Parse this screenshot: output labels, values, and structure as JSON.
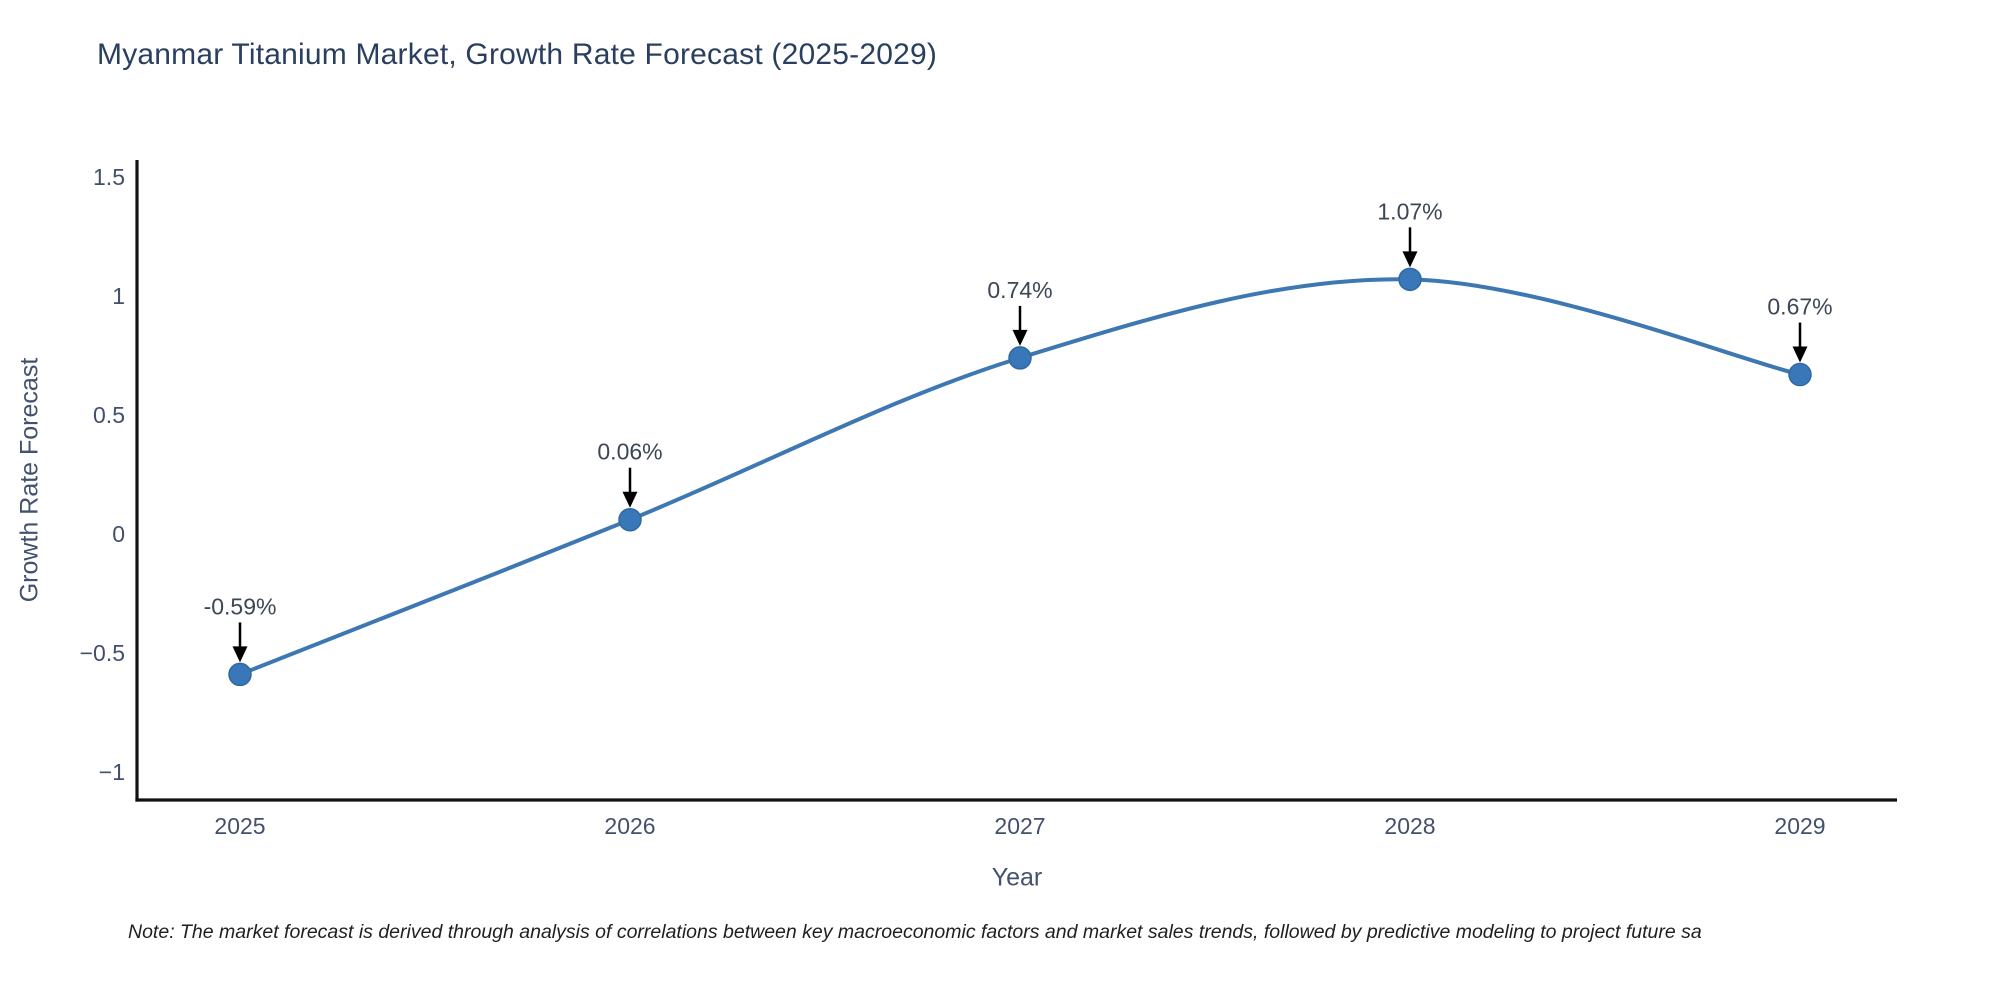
{
  "chart_data": {
    "type": "line",
    "title": "Myanmar Titanium Market, Growth Rate Forecast (2025-2029)",
    "xlabel": "Year",
    "ylabel": "Growth Rate Forecast",
    "x": [
      2025,
      2026,
      2027,
      2028,
      2029
    ],
    "xtick_labels": [
      "2025",
      "2026",
      "2027",
      "2028",
      "2029"
    ],
    "series": [
      {
        "name": "Growth Rate Forecast",
        "values": [
          -0.59,
          0.06,
          0.74,
          1.07,
          0.67
        ]
      }
    ],
    "point_labels": [
      "-0.59%",
      "0.06%",
      "0.74%",
      "1.07%",
      "0.67%"
    ],
    "ytick_values": [
      1.5,
      1,
      0.5,
      0,
      -0.5,
      -1
    ],
    "ytick_labels": [
      "1.5",
      "1",
      "0.5",
      "0",
      "−0.5",
      "−1"
    ],
    "ylim": [
      -1.12,
      1.57
    ],
    "grid": false,
    "legend": "none",
    "note": "Note: The market forecast is derived through analysis of correlations between key macroeconomic factors and market sales trends, followed by predictive modeling to project future sa",
    "style": {
      "background": "#ffffff",
      "line_color": "#3d78b2",
      "marker_color": "#3a77b9",
      "marker_edge_color": "#2e699f",
      "axis_color": "#111111",
      "tick_color": "#42506b",
      "title_color": "#2a3f5f",
      "annotation_text_color": "#3d4656",
      "arrow_color": "#000000",
      "note_color": "#1f1f1f"
    }
  }
}
